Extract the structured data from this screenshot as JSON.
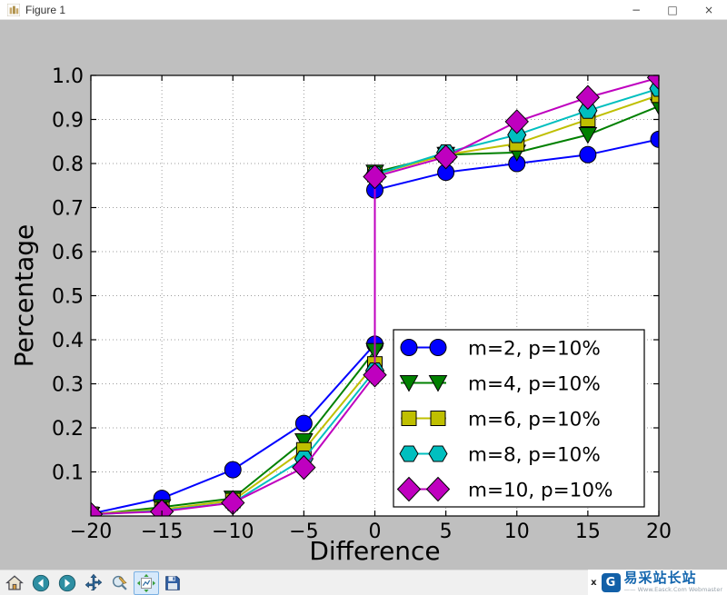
{
  "window": {
    "title": "Figure 1",
    "minimize_label": "−",
    "maximize_label": "□",
    "close_label": "×"
  },
  "toolbar": {
    "buttons": [
      {
        "name": "home"
      },
      {
        "name": "back"
      },
      {
        "name": "forward"
      },
      {
        "name": "pan"
      },
      {
        "name": "zoom-to-rect"
      },
      {
        "name": "configure-subplots",
        "active": true
      },
      {
        "name": "save"
      }
    ]
  },
  "watermark": {
    "close_label": "x",
    "logo_text": "G",
    "site_name": "易采站长站",
    "site_tagline": "—— Www.Easck.Com Webmaster"
  },
  "chart_data": {
    "type": "line",
    "title": "",
    "xlabel": "Difference",
    "ylabel": "Percentage",
    "xlim": [
      -20,
      20
    ],
    "ylim": [
      0,
      1.0
    ],
    "grid": true,
    "legend_position": "lower right inside axes",
    "xticks": [
      -20,
      -15,
      -10,
      -5,
      0,
      5,
      10,
      15,
      20
    ],
    "xtick_labels": [
      "−20",
      "−15",
      "−10",
      "−5",
      "0",
      "5",
      "10",
      "15",
      "20"
    ],
    "yticks": [
      0.1,
      0.2,
      0.3,
      0.4,
      0.5,
      0.6,
      0.7,
      0.8,
      0.9,
      1.0
    ],
    "ytick_labels": [
      "0.1",
      "0.2",
      "0.3",
      "0.4",
      "0.5",
      "0.6",
      "0.7",
      "0.8",
      "0.9",
      "1.0"
    ],
    "x": [
      -20,
      -15,
      -10,
      -5,
      0,
      0,
      5,
      10,
      15,
      20
    ],
    "series": [
      {
        "name": "m=2, p=10%",
        "color": "#0000ff",
        "marker": "circle",
        "values": [
          0.005,
          0.04,
          0.105,
          0.21,
          0.39,
          0.74,
          0.78,
          0.8,
          0.82,
          0.855
        ]
      },
      {
        "name": "m=4, p=10%",
        "color": "#008000",
        "marker": "triangle-down",
        "values": [
          0.003,
          0.02,
          0.04,
          0.17,
          0.375,
          0.78,
          0.82,
          0.825,
          0.865,
          0.93
        ]
      },
      {
        "name": "m=6, p=10%",
        "color": "#bfbf00",
        "marker": "square",
        "values": [
          0.004,
          0.015,
          0.035,
          0.15,
          0.345,
          0.775,
          0.82,
          0.845,
          0.9,
          0.955
        ]
      },
      {
        "name": "m=8, p=10%",
        "color": "#00bfbf",
        "marker": "hexagon",
        "values": [
          0.003,
          0.012,
          0.03,
          0.13,
          0.33,
          0.775,
          0.825,
          0.865,
          0.92,
          0.97
        ]
      },
      {
        "name": "m=10, p=10%",
        "color": "#bf00bf",
        "marker": "diamond",
        "values": [
          0.004,
          0.01,
          0.03,
          0.11,
          0.32,
          0.77,
          0.815,
          0.895,
          0.95,
          0.995
        ]
      }
    ]
  }
}
